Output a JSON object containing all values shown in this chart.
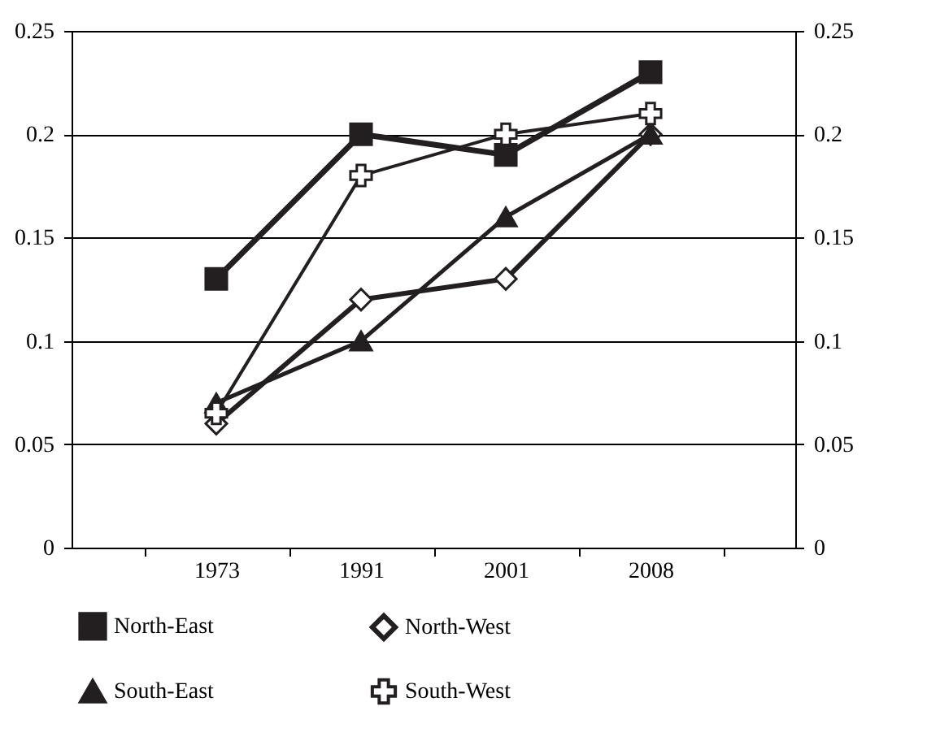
{
  "chart_data": {
    "type": "line",
    "categories": [
      "1973",
      "1991",
      "2001",
      "2008"
    ],
    "series": [
      {
        "name": "North-East",
        "color": "#231f20",
        "marker": "square",
        "values": [
          0.13,
          0.2,
          0.19,
          0.23
        ]
      },
      {
        "name": "North-West",
        "color": "#231f20",
        "marker": "diamond",
        "values": [
          0.06,
          0.12,
          0.13,
          0.2
        ]
      },
      {
        "name": "South-East",
        "color": "#231f20",
        "marker": "triangle",
        "values": [
          0.07,
          0.1,
          0.16,
          0.2
        ]
      },
      {
        "name": "South-West",
        "color": "#231f20",
        "marker": "cross",
        "values": [
          0.065,
          0.18,
          0.2,
          0.21
        ]
      }
    ],
    "ylim": [
      0,
      0.25
    ],
    "yticks": [
      0,
      0.05,
      0.1,
      0.15,
      0.2,
      0.25
    ],
    "y2lim": [
      0,
      0.25
    ],
    "y2ticks": [
      0,
      0.05,
      0.1,
      0.15,
      0.2,
      0.25
    ],
    "grid": "y",
    "legend": "bottom",
    "line_style": "solid"
  }
}
